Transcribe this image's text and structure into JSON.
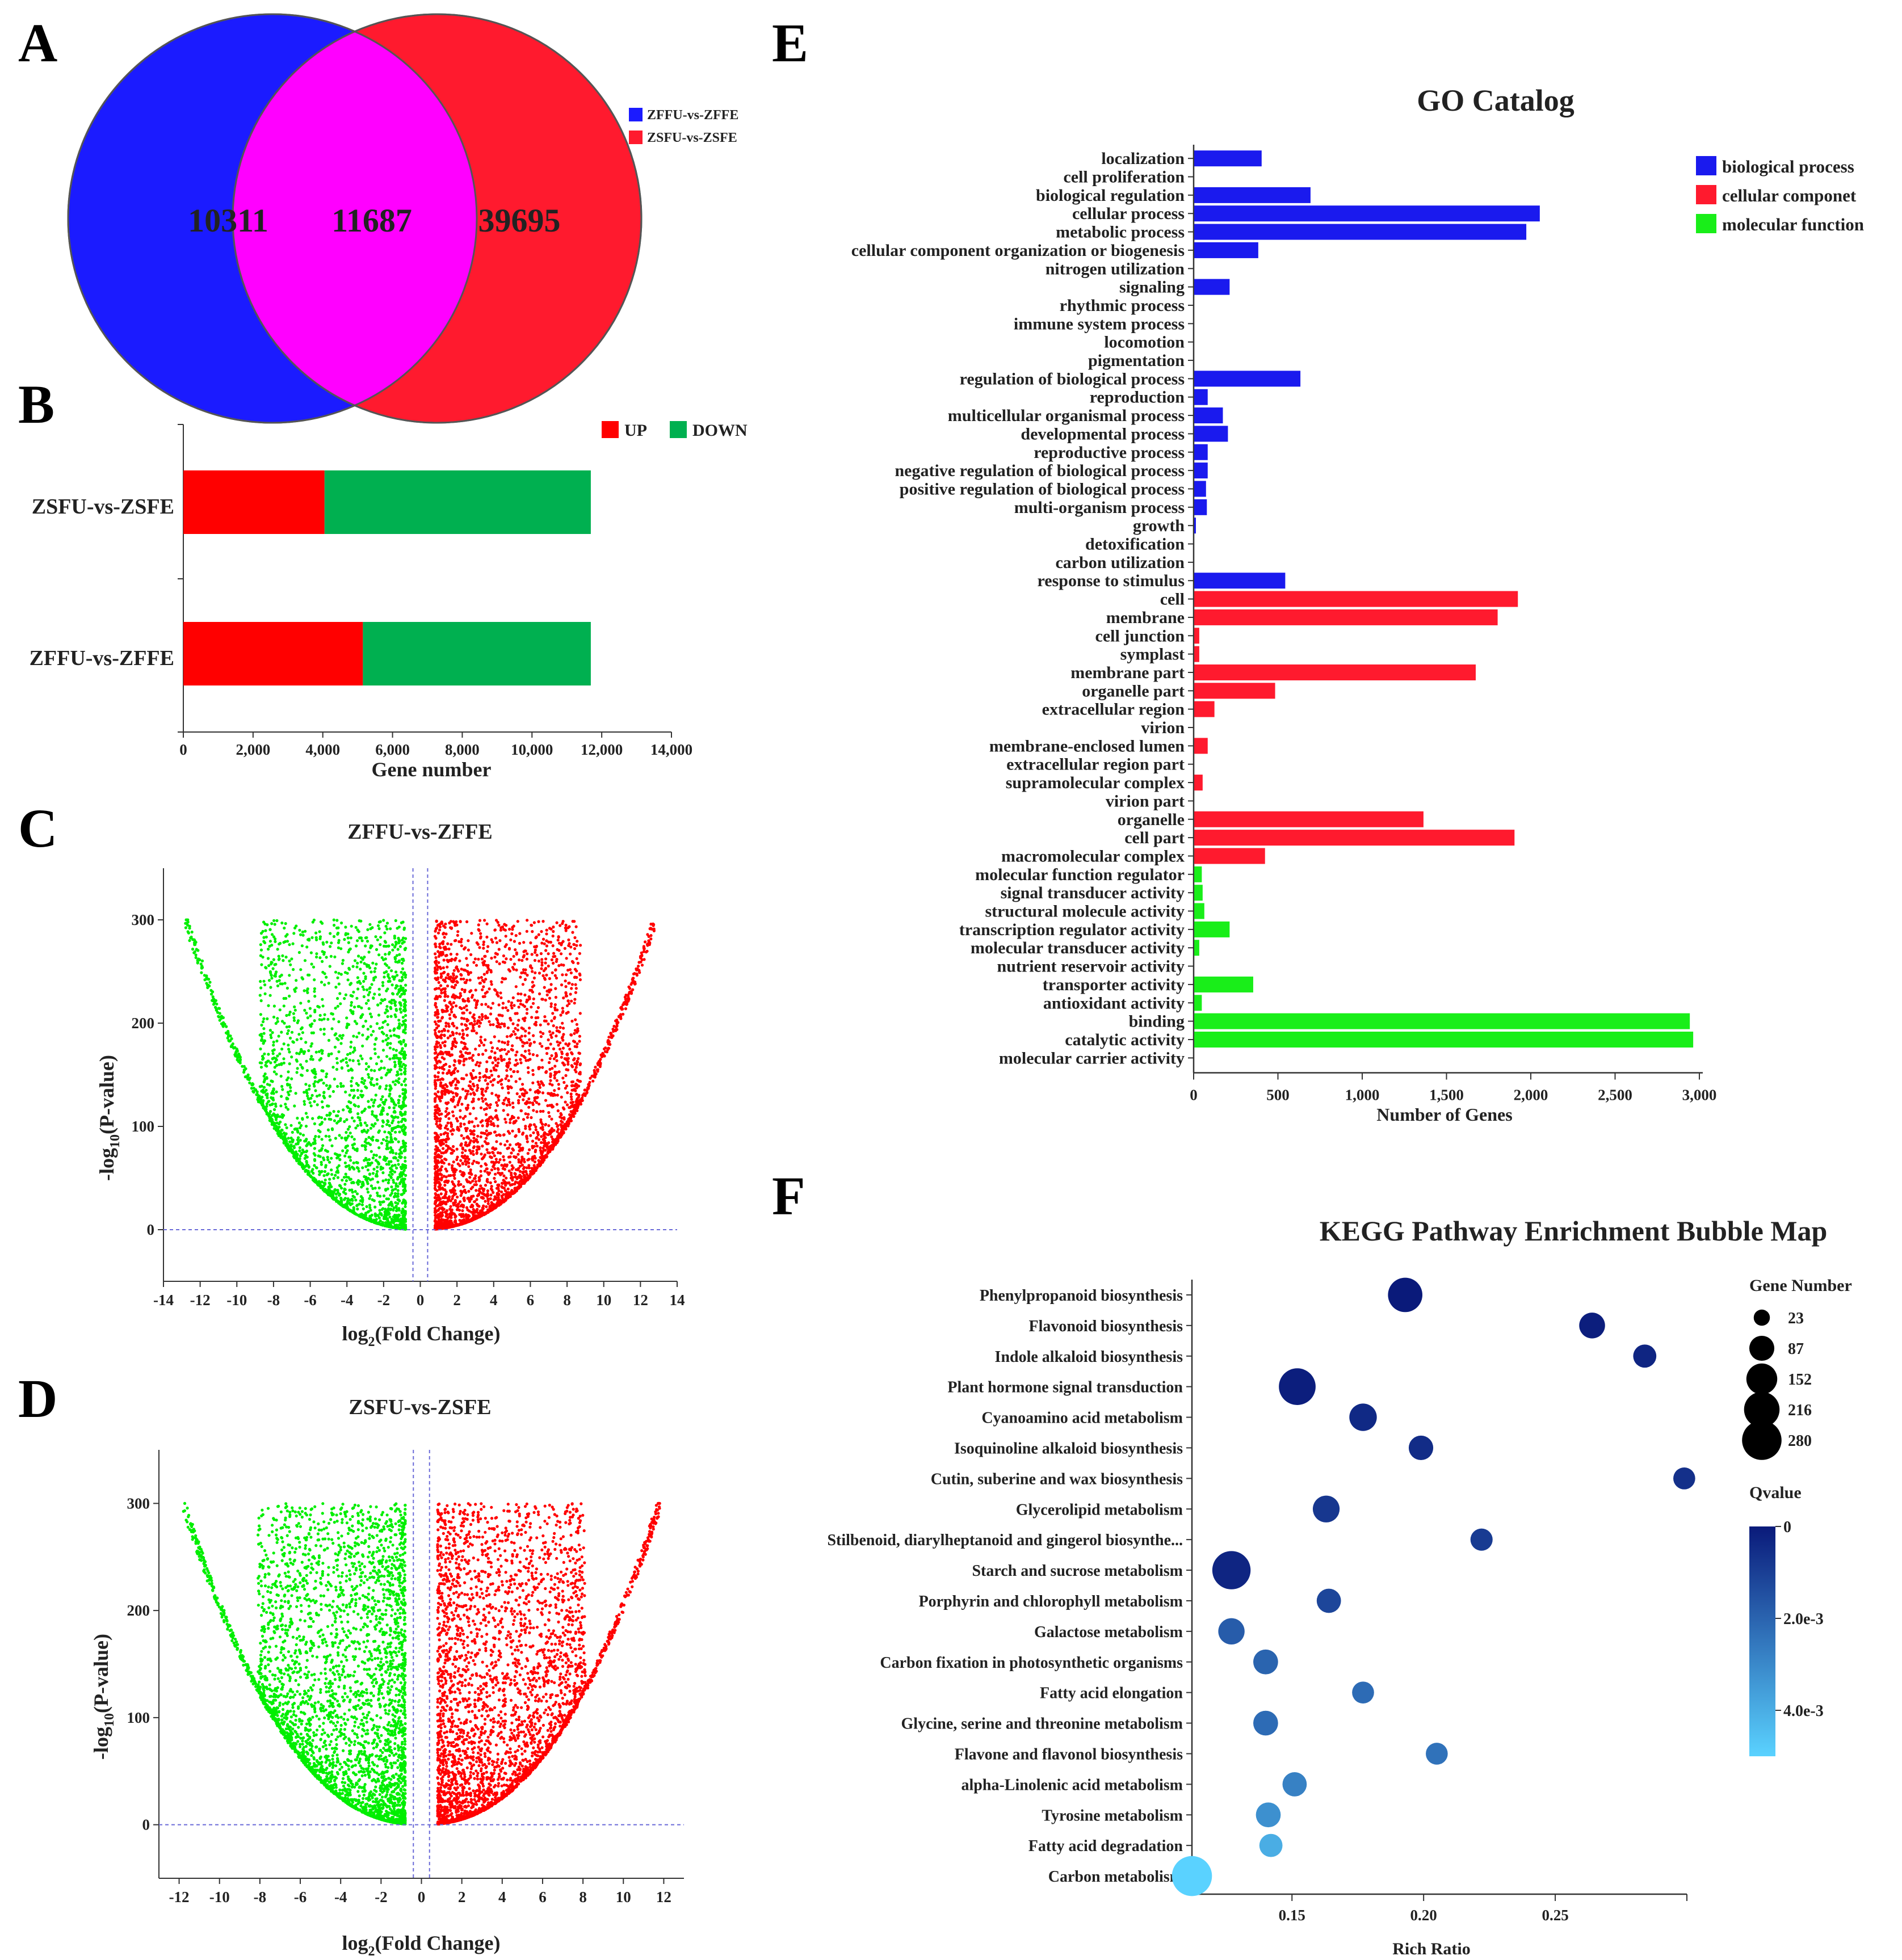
{
  "panels": {
    "A": "A",
    "B": "B",
    "C": "C",
    "D": "D",
    "E": "E",
    "F": "F"
  },
  "chart_data": [
    {
      "id": "A",
      "type": "venn",
      "sets": [
        {
          "name": "ZFFU-vs-ZFFE",
          "color": "#1b1bff",
          "only": 10311
        },
        {
          "name": "ZSFU-vs-ZSFE",
          "color": "#ff1a2e",
          "only": 39695
        }
      ],
      "overlap": {
        "value": 11687,
        "color": "#ff00ff"
      }
    },
    {
      "id": "B",
      "type": "bar",
      "orientation": "horizontal",
      "stacked": true,
      "categories": [
        "ZSFU-vs-ZSFE",
        "ZFFU-vs-ZFFE"
      ],
      "series": [
        {
          "name": "UP",
          "color": "#ff0000",
          "values": [
            4050,
            5150
          ]
        },
        {
          "name": "DOWN",
          "color": "#00b050",
          "values": [
            7637,
            6537
          ]
        }
      ],
      "xlabel": "Gene number",
      "xlim": [
        0,
        14000
      ],
      "xticks": [
        "0",
        "2,000",
        "4,000",
        "6,000",
        "8,000",
        "10,000",
        "12,000",
        "14,000"
      ]
    },
    {
      "id": "C",
      "type": "scatter",
      "title": "ZFFU-vs-ZFFE",
      "xlabel": "log2(Fold Change)",
      "ylabel": "-log10(P-value)",
      "xlim": [
        -14,
        14
      ],
      "ylim": [
        -50,
        350
      ],
      "xticks": [
        -14,
        -12,
        -10,
        -8,
        -6,
        -4,
        -2,
        0,
        2,
        4,
        6,
        8,
        10,
        12,
        14
      ],
      "yticks": [
        0,
        100,
        200,
        300
      ],
      "thresholds": {
        "x": [
          -0.4,
          0.4
        ],
        "y": 0
      },
      "down_color": "#00ee00",
      "up_color": "#ff0000",
      "down_points": 2600,
      "up_points": 3400,
      "seed": 11
    },
    {
      "id": "D",
      "type": "scatter",
      "title": "ZSFU-vs-ZSFE",
      "xlabel": "log2(Fold Change)",
      "ylabel": "-log10(P-value)",
      "xlim": [
        -13,
        13
      ],
      "ylim": [
        -50,
        350
      ],
      "xticks": [
        -12,
        -10,
        -8,
        -6,
        -4,
        -2,
        0,
        2,
        4,
        6,
        8,
        10,
        12
      ],
      "yticks": [
        0,
        100,
        200,
        300
      ],
      "thresholds": {
        "x": [
          -0.4,
          0.4
        ],
        "y": 0
      },
      "down_color": "#00ee00",
      "up_color": "#ff0000",
      "down_points": 3600,
      "up_points": 3400,
      "seed": 29
    },
    {
      "id": "E",
      "type": "bar",
      "orientation": "horizontal",
      "title": "GO Catalog",
      "xlabel": "Number of Genes",
      "xlim": [
        0,
        3000
      ],
      "xticks": [
        "0",
        "500",
        "1,000",
        "1,500",
        "2,000",
        "2,500",
        "3,000"
      ],
      "legend": [
        {
          "name": "biological process",
          "color": "#1a1aee"
        },
        {
          "name": "cellular componet",
          "color": "#ff1a2e"
        },
        {
          "name": "molecular function",
          "color": "#19ee19"
        }
      ],
      "categories": [
        {
          "label": "localization",
          "value": 400,
          "group": 0
        },
        {
          "label": "cell proliferation",
          "value": 0,
          "group": 0
        },
        {
          "label": "biological regulation",
          "value": 690,
          "group": 0
        },
        {
          "label": "cellular process",
          "value": 2050,
          "group": 0
        },
        {
          "label": "metabolic process",
          "value": 1970,
          "group": 0
        },
        {
          "label": "cellular component organization or biogenesis",
          "value": 380,
          "group": 0
        },
        {
          "label": "nitrogen utilization",
          "value": 0,
          "group": 0
        },
        {
          "label": "signaling",
          "value": 210,
          "group": 0
        },
        {
          "label": "rhythmic process",
          "value": 0,
          "group": 0
        },
        {
          "label": "immune system process",
          "value": 0,
          "group": 0
        },
        {
          "label": "locomotion",
          "value": 0,
          "group": 0
        },
        {
          "label": "pigmentation",
          "value": 0,
          "group": 0
        },
        {
          "label": "regulation of biological process",
          "value": 630,
          "group": 0
        },
        {
          "label": "reproduction",
          "value": 80,
          "group": 0
        },
        {
          "label": "multicellular organismal process",
          "value": 170,
          "group": 0
        },
        {
          "label": "developmental process",
          "value": 200,
          "group": 0
        },
        {
          "label": "reproductive process",
          "value": 80,
          "group": 0
        },
        {
          "label": "negative regulation of biological process",
          "value": 80,
          "group": 0
        },
        {
          "label": "positive regulation of biological process",
          "value": 70,
          "group": 0
        },
        {
          "label": "multi-organism process",
          "value": 75,
          "group": 0
        },
        {
          "label": "growth",
          "value": 10,
          "group": 0
        },
        {
          "label": "detoxification",
          "value": 0,
          "group": 0
        },
        {
          "label": "carbon utilization",
          "value": 0,
          "group": 0
        },
        {
          "label": "response to stimulus",
          "value": 540,
          "group": 0
        },
        {
          "label": "cell",
          "value": 1920,
          "group": 1
        },
        {
          "label": "membrane",
          "value": 1800,
          "group": 1
        },
        {
          "label": "cell junction",
          "value": 30,
          "group": 1
        },
        {
          "label": "symplast",
          "value": 30,
          "group": 1
        },
        {
          "label": "membrane part",
          "value": 1670,
          "group": 1
        },
        {
          "label": "organelle part",
          "value": 480,
          "group": 1
        },
        {
          "label": "extracellular region",
          "value": 120,
          "group": 1
        },
        {
          "label": "virion",
          "value": 0,
          "group": 1
        },
        {
          "label": "membrane-enclosed lumen",
          "value": 80,
          "group": 1
        },
        {
          "label": "extracellular region part",
          "value": 0,
          "group": 1
        },
        {
          "label": "supramolecular complex",
          "value": 50,
          "group": 1
        },
        {
          "label": "virion part",
          "value": 0,
          "group": 1
        },
        {
          "label": "organelle",
          "value": 1360,
          "group": 1
        },
        {
          "label": "cell part",
          "value": 1900,
          "group": 1
        },
        {
          "label": "macromolecular complex",
          "value": 420,
          "group": 1
        },
        {
          "label": "molecular function regulator",
          "value": 45,
          "group": 2
        },
        {
          "label": "signal transducer activity",
          "value": 50,
          "group": 2
        },
        {
          "label": "structural molecule activity",
          "value": 60,
          "group": 2
        },
        {
          "label": "transcription regulator activity",
          "value": 210,
          "group": 2
        },
        {
          "label": "molecular transducer activity",
          "value": 30,
          "group": 2
        },
        {
          "label": "nutrient reservoir activity",
          "value": 0,
          "group": 2
        },
        {
          "label": "transporter activity",
          "value": 350,
          "group": 2
        },
        {
          "label": "antioxidant activity",
          "value": 45,
          "group": 2
        },
        {
          "label": "binding",
          "value": 2940,
          "group": 2
        },
        {
          "label": "catalytic activity",
          "value": 2960,
          "group": 2
        },
        {
          "label": "molecular carrier activity",
          "value": 0,
          "group": 2
        }
      ]
    },
    {
      "id": "F",
      "type": "scatter",
      "subtype": "bubble",
      "title": "KEGG Pathway Enrichment Bubble Map",
      "xlabel": "Rich Ratio",
      "xlim": [
        0.112,
        0.3
      ],
      "xticks": [
        "0.15",
        "0.20",
        "0.25"
      ],
      "xtick_values": [
        0.15,
        0.2,
        0.25
      ],
      "size_legend_title": "Gene Number",
      "size_legend": [
        23,
        87,
        152,
        216,
        280
      ],
      "color_legend_title": "Qvalue",
      "color_legend_ticks": [
        "0",
        "2.0e-3",
        "4.0e-3"
      ],
      "qvalue_range": [
        0,
        0.005
      ],
      "color_low": "#0a1a7a",
      "color_high": "#5ad2ff",
      "points": [
        {
          "pathway": "Phenylpropanoid biosynthesis",
          "x": 0.193,
          "genes": 200,
          "q": 0.0
        },
        {
          "pathway": "Flavonoid biosynthesis",
          "x": 0.264,
          "genes": 95,
          "q": 0.0001
        },
        {
          "pathway": "Indole alkaloid biosynthesis",
          "x": 0.284,
          "genes": 70,
          "q": 0.0003
        },
        {
          "pathway": "Plant hormone signal transduction",
          "x": 0.152,
          "genes": 235,
          "q": 0.0001
        },
        {
          "pathway": "Cyanoamino acid metabolism",
          "x": 0.177,
          "genes": 112,
          "q": 0.0004
        },
        {
          "pathway": "Isoquinoline alkaloid biosynthesis",
          "x": 0.199,
          "genes": 82,
          "q": 0.0005
        },
        {
          "pathway": "Cutin, suberine and wax biosynthesis",
          "x": 0.299,
          "genes": 60,
          "q": 0.0006
        },
        {
          "pathway": "Glycerolipid metabolism",
          "x": 0.163,
          "genes": 105,
          "q": 0.0008
        },
        {
          "pathway": "Stilbenoid, diarylheptanoid and gingerol biosynthe...",
          "x": 0.222,
          "genes": 62,
          "q": 0.0009
        },
        {
          "pathway": "Starch and sucrose metabolism",
          "x": 0.127,
          "genes": 260,
          "q": 0.0003
        },
        {
          "pathway": "Porphyrin and chlorophyll metabolism",
          "x": 0.164,
          "genes": 80,
          "q": 0.0012
        },
        {
          "pathway": "Galactose metabolism",
          "x": 0.127,
          "genes": 100,
          "q": 0.0018
        },
        {
          "pathway": "Carbon fixation in photosynthetic organisms",
          "x": 0.14,
          "genes": 85,
          "q": 0.002
        },
        {
          "pathway": "Fatty acid elongation",
          "x": 0.177,
          "genes": 60,
          "q": 0.0022
        },
        {
          "pathway": "Glycine, serine and threonine metabolism",
          "x": 0.14,
          "genes": 85,
          "q": 0.0022
        },
        {
          "pathway": "Flavone and flavonol biosynthesis",
          "x": 0.205,
          "genes": 60,
          "q": 0.0024
        },
        {
          "pathway": "alpha-Linolenic acid metabolism",
          "x": 0.151,
          "genes": 80,
          "q": 0.0028
        },
        {
          "pathway": "Tyrosine metabolism",
          "x": 0.141,
          "genes": 85,
          "q": 0.0032
        },
        {
          "pathway": "Fatty acid degradation",
          "x": 0.142,
          "genes": 70,
          "q": 0.004
        },
        {
          "pathway": "Carbon metabolism",
          "x": 0.112,
          "genes": 290,
          "q": 0.005
        }
      ]
    }
  ]
}
